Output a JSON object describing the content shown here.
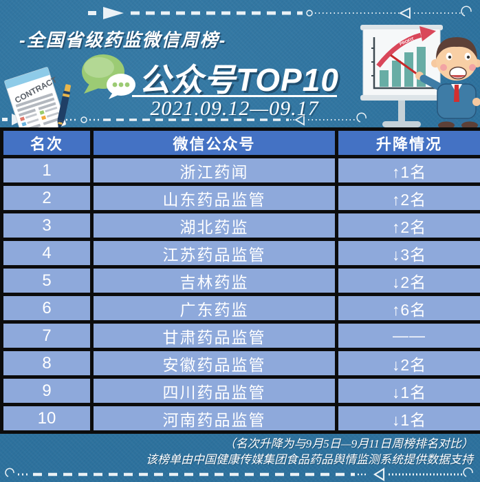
{
  "page": {
    "background_color": "#2e75a2",
    "accent_white": "#ffffff"
  },
  "header": {
    "subtitle": "-全国省级药监微信周榜-",
    "title": "公众号TOP10",
    "date_range": "2021.09.12—09.17",
    "icons": {
      "wechat_icon": "green and white chat bubbles with three dots",
      "contract_icon": "tilted contract document with pen",
      "presenter_icon": "businessman pointing at flip chart with rising bars",
      "chart_arrow_label": "PROFIT"
    }
  },
  "table": {
    "header_bg": "#4472c4",
    "row_bg": "#8ea9db",
    "border_color": "#0c0c0c",
    "columns": [
      "名次",
      "微信公众号",
      "升降情况"
    ],
    "rows": [
      {
        "rank": "1",
        "account": "浙江药闻",
        "change": "↑1名"
      },
      {
        "rank": "2",
        "account": "山东药品监管",
        "change": "↑2名"
      },
      {
        "rank": "3",
        "account": "湖北药监",
        "change": "↑2名"
      },
      {
        "rank": "4",
        "account": "江苏药品监管",
        "change": "↓3名"
      },
      {
        "rank": "5",
        "account": "吉林药监",
        "change": "↓2名"
      },
      {
        "rank": "6",
        "account": "广东药监",
        "change": "↑6名"
      },
      {
        "rank": "7",
        "account": "甘肃药品监管",
        "change": "——"
      },
      {
        "rank": "8",
        "account": "安徽药品监管",
        "change": "↓2名"
      },
      {
        "rank": "9",
        "account": "四川药品监管",
        "change": "↓1名"
      },
      {
        "rank": "10",
        "account": "河南药品监管",
        "change": "↓1名"
      }
    ]
  },
  "footer": {
    "note1": "（名次升降为与9月5日—9月11日周榜排名对比）",
    "note2": "该榜单由中国健康传媒集团食品药品舆情监测系统提供数据支持"
  }
}
